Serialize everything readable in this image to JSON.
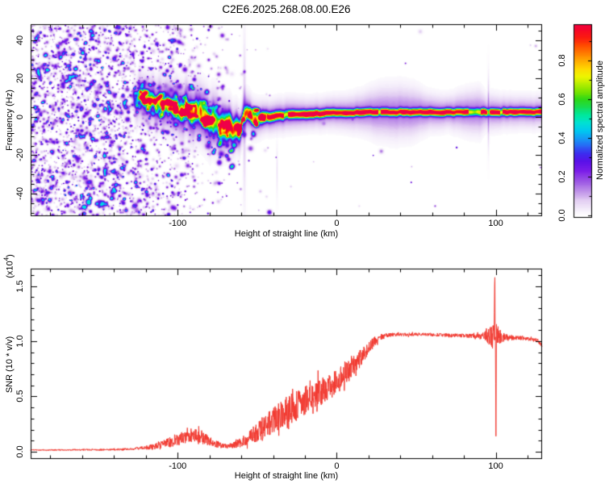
{
  "title": "C2E6.2025.268.08.00.E26",
  "colors": {
    "axis": "#000000",
    "snr_line": "#f23b32",
    "background": "#ffffff"
  },
  "chart_data": [
    {
      "type": "heatmap",
      "panel": "spectrogram",
      "xlabel": "Height of straight line (km)",
      "ylabel": "Frequency (Hz)",
      "xlim": [
        -192.4,
        129.1
      ],
      "ylim": [
        -51.8,
        48.4
      ],
      "xticks": [
        {
          "v": -100,
          "label": "-100"
        },
        {
          "v": 0,
          "label": "0"
        },
        {
          "v": 100,
          "label": "100"
        }
      ],
      "xminor_step": 20,
      "yticks": [
        {
          "v": 40,
          "label": "40"
        },
        {
          "v": 20,
          "label": "20"
        },
        {
          "v": 0,
          "label": "0"
        },
        {
          "v": -20,
          "label": "-20"
        },
        {
          "v": -40,
          "label": "-40"
        }
      ],
      "yminor_step": 5,
      "colorbar": {
        "label": "Normalized spectral amplitude",
        "lim": [
          -0.012,
          0.988
        ],
        "ticks": [
          {
            "v": 0.0,
            "label": "0.0"
          },
          {
            "v": 0.2,
            "label": "0.2"
          },
          {
            "v": 0.4,
            "label": "0.4"
          },
          {
            "v": 0.6,
            "label": "0.6"
          },
          {
            "v": 0.8,
            "label": "0.8"
          }
        ],
        "minor_step": 0.1
      },
      "colormap": [
        [
          0.0,
          "#ffffff"
        ],
        [
          0.03,
          "#f6f0fb"
        ],
        [
          0.08,
          "#e2cdf2"
        ],
        [
          0.13,
          "#bd8ee8"
        ],
        [
          0.18,
          "#9b55e4"
        ],
        [
          0.23,
          "#7d1fe8"
        ],
        [
          0.28,
          "#5a10e8"
        ],
        [
          0.32,
          "#3e2bee"
        ],
        [
          0.36,
          "#2a64f5"
        ],
        [
          0.4,
          "#149cf5"
        ],
        [
          0.44,
          "#00c8f0"
        ],
        [
          0.48,
          "#00e2d2"
        ],
        [
          0.52,
          "#00e89e"
        ],
        [
          0.56,
          "#16dd57"
        ],
        [
          0.6,
          "#2ed817"
        ],
        [
          0.64,
          "#76e300"
        ],
        [
          0.68,
          "#b5ee00"
        ],
        [
          0.72,
          "#eef500"
        ],
        [
          0.76,
          "#ffd900"
        ],
        [
          0.8,
          "#ffaa00"
        ],
        [
          0.84,
          "#ff7d00"
        ],
        [
          0.88,
          "#ff4a00"
        ],
        [
          0.92,
          "#fb1c10"
        ],
        [
          0.96,
          "#f60628"
        ],
        [
          1.0,
          "#ef0048"
        ]
      ],
      "signal": {
        "start_km": -130,
        "fade_km": 6,
        "ridge": [
          [
            -128,
            10
          ],
          [
            -122,
            8.8
          ],
          [
            -116,
            7.8
          ],
          [
            -110,
            7
          ],
          [
            -104,
            6
          ],
          [
            -98,
            4.5
          ],
          [
            -93,
            3
          ],
          [
            -88,
            1.2
          ],
          [
            -83,
            -0.8
          ],
          [
            -78,
            -2.6
          ],
          [
            -73,
            -4.4
          ],
          [
            -68,
            -6
          ],
          [
            -65,
            -6.6
          ],
          [
            -62,
            -5.6
          ],
          [
            -59.5,
            -4
          ],
          [
            -58,
            0
          ],
          [
            -56.5,
            1.8
          ],
          [
            -54,
            0.6
          ],
          [
            -51,
            -0.4
          ],
          [
            -47,
            -0.2
          ],
          [
            -42,
            0.3
          ],
          [
            -36,
            0.7
          ],
          [
            -28,
            1.1
          ],
          [
            -18,
            1.6
          ],
          [
            -8,
            1.9
          ],
          [
            2,
            2.1
          ],
          [
            16,
            2.4
          ],
          [
            40,
            2.5
          ],
          [
            70,
            2.5
          ],
          [
            95,
            2.5
          ],
          [
            129,
            2.5
          ]
        ],
        "core_amp": [
          [
            -128,
            0.5
          ],
          [
            -118,
            0.55
          ],
          [
            -108,
            0.6
          ],
          [
            -100,
            0.68
          ],
          [
            -92,
            0.75
          ],
          [
            -84,
            0.8
          ],
          [
            -76,
            0.72
          ],
          [
            -68,
            0.75
          ],
          [
            -61,
            0.8
          ],
          [
            -57,
            0.88
          ],
          [
            -52,
            0.82
          ],
          [
            -46,
            0.88
          ],
          [
            -40,
            0.95
          ],
          [
            -32,
            1
          ],
          [
            129,
            1
          ]
        ],
        "core_sigma": [
          [
            -128,
            3.2
          ],
          [
            -110,
            3.4
          ],
          [
            -96,
            3.8
          ],
          [
            -84,
            4.3
          ],
          [
            -72,
            4.6
          ],
          [
            -63,
            4.2
          ],
          [
            -58,
            2.8
          ],
          [
            -52,
            2.2
          ],
          [
            -44,
            2
          ],
          [
            -30,
            1.8
          ],
          [
            -10,
            1.7
          ],
          [
            10,
            1.6
          ],
          [
            129,
            1.55
          ]
        ],
        "halo_amp": [
          [
            -128,
            0.2
          ],
          [
            -90,
            0.24
          ],
          [
            -70,
            0.24
          ],
          [
            -58,
            0.2
          ],
          [
            -45,
            0.18
          ],
          [
            -20,
            0.16
          ],
          [
            0,
            0.15
          ],
          [
            129,
            0.15
          ]
        ],
        "halo_sigma": [
          [
            -128,
            7
          ],
          [
            -95,
            8.5
          ],
          [
            -75,
            9
          ],
          [
            -60,
            6.5
          ],
          [
            -52,
            5.5
          ],
          [
            -44,
            4.8
          ],
          [
            -30,
            5
          ],
          [
            -18,
            4.6
          ],
          [
            -6,
            4.8
          ],
          [
            6,
            5.2
          ],
          [
            16,
            6
          ],
          [
            26,
            7.6
          ],
          [
            38,
            8.2
          ],
          [
            48,
            7.6
          ],
          [
            58,
            5.6
          ],
          [
            70,
            5
          ],
          [
            82,
            6.5
          ],
          [
            90,
            7
          ],
          [
            94,
            5
          ],
          [
            97,
            5.5
          ],
          [
            104,
            5
          ],
          [
            115,
            4.8
          ],
          [
            129,
            4.8
          ]
        ],
        "center_jitter": [
          [
            -128,
            2.2
          ],
          [
            -62,
            2.6
          ],
          [
            -52,
            1.2
          ],
          [
            -42,
            0.6
          ],
          [
            -20,
            0.35
          ],
          [
            129,
            0.3
          ]
        ],
        "pinch": {
          "km": 95.4,
          "width": 0.8,
          "depth": 0.55
        },
        "beads": {
          "count": 70,
          "km_min": -128,
          "km_max": -44
        },
        "under_blobs": {
          "count": 26,
          "km_min": -92,
          "km_max": -52
        }
      },
      "streaks": [
        {
          "km": -58,
          "width": 0.9,
          "amp": 0.09,
          "f_center": 0,
          "f_sigma": 40
        },
        {
          "km": 95.4,
          "width": 0.55,
          "amp": 0.13,
          "f_center": 2.5,
          "f_sigma": 17
        },
        {
          "km": -37.5,
          "width": 0.5,
          "amp": 0.05,
          "f_center": -28,
          "f_sigma": 14
        }
      ],
      "noise": {
        "count": 2800,
        "seed": 11,
        "density": [
          [
            -192,
            0.95
          ],
          [
            -162,
            0.9
          ],
          [
            -148,
            0.85
          ],
          [
            -136,
            0.76
          ],
          [
            -126,
            0.62
          ],
          [
            -116,
            0.52
          ],
          [
            -106,
            0.42
          ],
          [
            -96,
            0.33
          ],
          [
            -86,
            0.23
          ],
          [
            -76,
            0.14
          ],
          [
            -66,
            0.08
          ],
          [
            -58,
            0.045
          ],
          [
            -50,
            0.02
          ],
          [
            -42,
            0.01
          ],
          [
            -28,
            0.005
          ],
          [
            0,
            0.003
          ],
          [
            129,
            0.002
          ]
        ],
        "amp_min": 0.06,
        "amp_max": 0.42,
        "r_min": 0.8,
        "r_max": 3.4
      }
    },
    {
      "type": "line",
      "panel": "snr",
      "xlabel": "Height of straight line (km)",
      "ylabel": "SNR (10 * v/v)",
      "ylabel_scale": {
        "prefix": "(x10",
        "exp": "4",
        "suffix": ")"
      },
      "xlim": [
        -192.4,
        129.1
      ],
      "ylim": [
        -0.066,
        1.657
      ],
      "xticks": [
        {
          "v": -100,
          "label": "-100"
        },
        {
          "v": 0,
          "label": "0"
        },
        {
          "v": 100,
          "label": "100"
        }
      ],
      "xminor_step": 20,
      "yticks": [
        {
          "v": 0,
          "label": "0.0"
        },
        {
          "v": 0.5,
          "label": "0.5"
        },
        {
          "v": 1,
          "label": "1.0"
        },
        {
          "v": 1.5,
          "label": "1.5"
        }
      ],
      "yminor_step": 0.1,
      "seed": 23,
      "samples_per_km": 6,
      "mean": [
        [
          -192,
          0.015
        ],
        [
          -175,
          0.016
        ],
        [
          -160,
          0.017
        ],
        [
          -148,
          0.018
        ],
        [
          -138,
          0.02
        ],
        [
          -131,
          0.023
        ],
        [
          -126,
          0.028
        ],
        [
          -121,
          0.035
        ],
        [
          -116,
          0.045
        ],
        [
          -111,
          0.06
        ],
        [
          -107,
          0.075
        ],
        [
          -103,
          0.095
        ],
        [
          -99,
          0.115
        ],
        [
          -95,
          0.135
        ],
        [
          -91,
          0.155
        ],
        [
          -88,
          0.15
        ],
        [
          -85,
          0.135
        ],
        [
          -82,
          0.115
        ],
        [
          -79,
          0.095
        ],
        [
          -76,
          0.075
        ],
        [
          -73,
          0.06
        ],
        [
          -70,
          0.05
        ],
        [
          -67,
          0.052
        ],
        [
          -64,
          0.065
        ],
        [
          -61,
          0.082
        ],
        [
          -58,
          0.105
        ],
        [
          -55,
          0.13
        ],
        [
          -52,
          0.16
        ],
        [
          -49,
          0.19
        ],
        [
          -46,
          0.22
        ],
        [
          -43,
          0.25
        ],
        [
          -40,
          0.285
        ],
        [
          -37,
          0.315
        ],
        [
          -34,
          0.34
        ],
        [
          -31,
          0.365
        ],
        [
          -28,
          0.395
        ],
        [
          -25,
          0.42
        ],
        [
          -22,
          0.445
        ],
        [
          -19,
          0.47
        ],
        [
          -16,
          0.495
        ],
        [
          -13,
          0.52
        ],
        [
          -10,
          0.545
        ],
        [
          -7,
          0.57
        ],
        [
          -4,
          0.6
        ],
        [
          -1,
          0.625
        ],
        [
          2,
          0.655
        ],
        [
          5,
          0.695
        ],
        [
          8,
          0.74
        ],
        [
          11,
          0.785
        ],
        [
          14,
          0.835
        ],
        [
          17,
          0.885
        ],
        [
          20,
          0.935
        ],
        [
          23,
          0.985
        ],
        [
          26,
          1.02
        ],
        [
          29,
          1.045
        ],
        [
          32,
          1.055
        ],
        [
          36,
          1.06
        ],
        [
          42,
          1.06
        ],
        [
          50,
          1.062
        ],
        [
          58,
          1.06
        ],
        [
          66,
          1.058
        ],
        [
          74,
          1.052
        ],
        [
          82,
          1.05
        ],
        [
          88,
          1.045
        ],
        [
          92,
          1.045
        ],
        [
          96,
          1.05
        ],
        [
          100,
          1.04
        ],
        [
          104,
          1.035
        ],
        [
          110,
          1.03
        ],
        [
          116,
          1.028
        ],
        [
          122,
          1.02
        ],
        [
          126,
          1.005
        ],
        [
          129,
          0.97
        ]
      ],
      "noise_amp": [
        [
          -192,
          0.006
        ],
        [
          -160,
          0.007
        ],
        [
          -140,
          0.008
        ],
        [
          -130,
          0.01
        ],
        [
          -124,
          0.014
        ],
        [
          -118,
          0.022
        ],
        [
          -112,
          0.032
        ],
        [
          -106,
          0.045
        ],
        [
          -100,
          0.055
        ],
        [
          -94,
          0.065
        ],
        [
          -89,
          0.068
        ],
        [
          -84,
          0.06
        ],
        [
          -79,
          0.045
        ],
        [
          -74,
          0.03
        ],
        [
          -70,
          0.022
        ],
        [
          -66,
          0.026
        ],
        [
          -62,
          0.035
        ],
        [
          -58,
          0.05
        ],
        [
          -54,
          0.07
        ],
        [
          -50,
          0.09
        ],
        [
          -46,
          0.105
        ],
        [
          -42,
          0.115
        ],
        [
          -38,
          0.12
        ],
        [
          -34,
          0.125
        ],
        [
          -30,
          0.135
        ],
        [
          -26,
          0.14
        ],
        [
          -22,
          0.135
        ],
        [
          -18,
          0.13
        ],
        [
          -14,
          0.125
        ],
        [
          -10,
          0.12
        ],
        [
          -6,
          0.115
        ],
        [
          -2,
          0.11
        ],
        [
          2,
          0.11
        ],
        [
          6,
          0.105
        ],
        [
          10,
          0.095
        ],
        [
          14,
          0.085
        ],
        [
          18,
          0.07
        ],
        [
          22,
          0.05
        ],
        [
          26,
          0.032
        ],
        [
          30,
          0.02
        ],
        [
          36,
          0.016
        ],
        [
          50,
          0.015
        ],
        [
          70,
          0.016
        ],
        [
          82,
          0.018
        ],
        [
          88,
          0.022
        ],
        [
          91,
          0.03
        ],
        [
          93,
          0.045
        ],
        [
          95,
          0.07
        ],
        [
          97,
          0.1
        ],
        [
          98.5,
          0.12
        ],
        [
          99.5,
          0.08
        ],
        [
          100.5,
          0.12
        ],
        [
          102,
          0.09
        ],
        [
          104,
          0.05
        ],
        [
          107,
          0.03
        ],
        [
          112,
          0.02
        ],
        [
          120,
          0.017
        ],
        [
          129,
          0.02
        ]
      ],
      "spike": [
        [
          98.5,
          0
        ],
        [
          98.75,
          0.1
        ],
        [
          98.95,
          -0.07
        ],
        [
          99.1,
          0.22
        ],
        [
          99.25,
          0.45
        ],
        [
          99.38,
          0.72
        ],
        [
          99.5,
          0.25
        ],
        [
          99.62,
          -0.15
        ],
        [
          99.75,
          0.1
        ],
        [
          99.88,
          -0.3
        ],
        [
          100.0,
          -0.6
        ],
        [
          100.1,
          -0.9
        ],
        [
          100.25,
          -0.45
        ],
        [
          100.4,
          0.08
        ],
        [
          100.55,
          -0.12
        ],
        [
          100.7,
          0.06
        ],
        [
          100.9,
          -0.04
        ],
        [
          101.1,
          0.03
        ],
        [
          101.4,
          0
        ]
      ]
    }
  ]
}
